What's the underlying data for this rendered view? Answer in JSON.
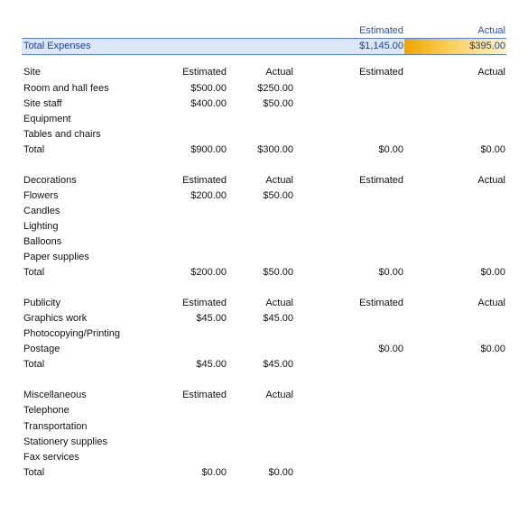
{
  "header": {
    "estimated": "Estimated",
    "actual": "Actual"
  },
  "total_expenses": {
    "label": "Total Expenses",
    "estimated": "$1,145.00",
    "actual": "$395.00"
  },
  "sections": [
    {
      "rows": [
        [
          "Site",
          "Estimated",
          "Actual",
          "Estimated",
          "Actual"
        ],
        [
          "Room and hall fees",
          "$500.00",
          "$250.00",
          "",
          ""
        ],
        [
          "Site staff",
          "$400.00",
          "$50.00",
          "",
          ""
        ],
        [
          "Equipment",
          "",
          "",
          "",
          ""
        ],
        [
          "Tables and chairs",
          "",
          "",
          "",
          ""
        ],
        [
          "Total",
          "$900.00",
          "$300.00",
          "$0.00",
          "$0.00"
        ]
      ]
    },
    {
      "rows": [
        [
          "Decorations",
          "Estimated",
          "Actual",
          "Estimated",
          "Actual"
        ],
        [
          "Flowers",
          "$200.00",
          "$50.00",
          "",
          ""
        ],
        [
          "Candles",
          "",
          "",
          "",
          ""
        ],
        [
          "Lighting",
          "",
          "",
          "",
          ""
        ],
        [
          "Balloons",
          "",
          "",
          "",
          ""
        ],
        [
          "Paper supplies",
          "",
          "",
          "",
          ""
        ],
        [
          "Total",
          "$200.00",
          "$50.00",
          "$0.00",
          "$0.00"
        ]
      ]
    },
    {
      "rows": [
        [
          "Publicity",
          "Estimated",
          "Actual",
          "Estimated",
          "Actual"
        ],
        [
          "Graphics work",
          "$45.00",
          "$45.00",
          "",
          ""
        ],
        [
          "Photocopying/Printing",
          "",
          "",
          "",
          ""
        ],
        [
          "Postage",
          "",
          "",
          "$0.00",
          "$0.00"
        ],
        [
          "Total",
          "$45.00",
          "$45.00",
          "",
          ""
        ]
      ]
    },
    {
      "rows": [
        [
          "Miscellaneous",
          "Estimated",
          "Actual",
          "",
          ""
        ],
        [
          "Telephone",
          "",
          "",
          "",
          ""
        ],
        [
          "Transportation",
          "",
          "",
          "",
          ""
        ],
        [
          "Stationery supplies",
          "",
          "",
          "",
          ""
        ],
        [
          "Fax services",
          "",
          "",
          "",
          ""
        ],
        [
          "Total",
          "$0.00",
          "$0.00",
          "",
          ""
        ]
      ]
    }
  ]
}
